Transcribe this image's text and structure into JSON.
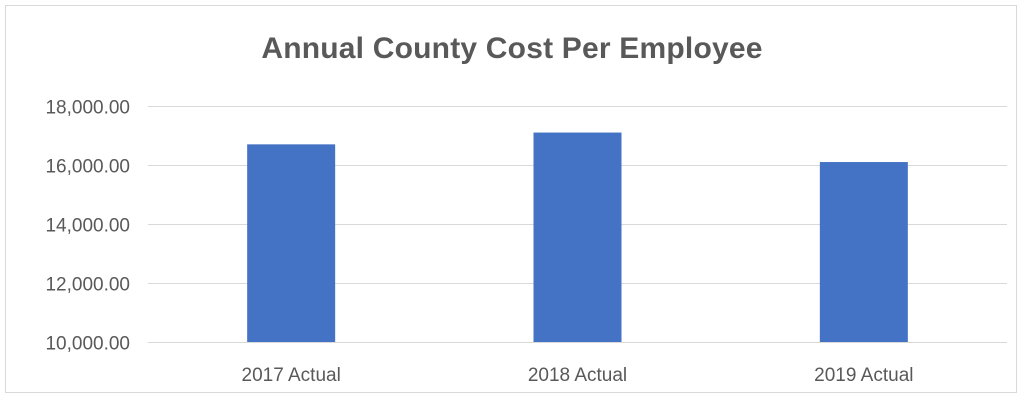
{
  "chart_data": {
    "type": "bar",
    "title": "Annual County Cost Per Employee",
    "xlabel": "",
    "ylabel": "",
    "categories": [
      "2017 Actual",
      "2018 Actual",
      "2019 Actual"
    ],
    "values": [
      16700,
      17100,
      16100
    ],
    "ylim": [
      10000,
      18000
    ],
    "yticks": [
      10000,
      12000,
      14000,
      16000,
      18000
    ],
    "ytick_labels": [
      "10,000.00",
      "12,000.00",
      "14,000.00",
      "16,000.00",
      "18,000.00"
    ],
    "grid": true,
    "legend": "none",
    "colors": {
      "bar": "#4472C4",
      "grid": "#d9d9d9",
      "text": "#595959"
    }
  }
}
